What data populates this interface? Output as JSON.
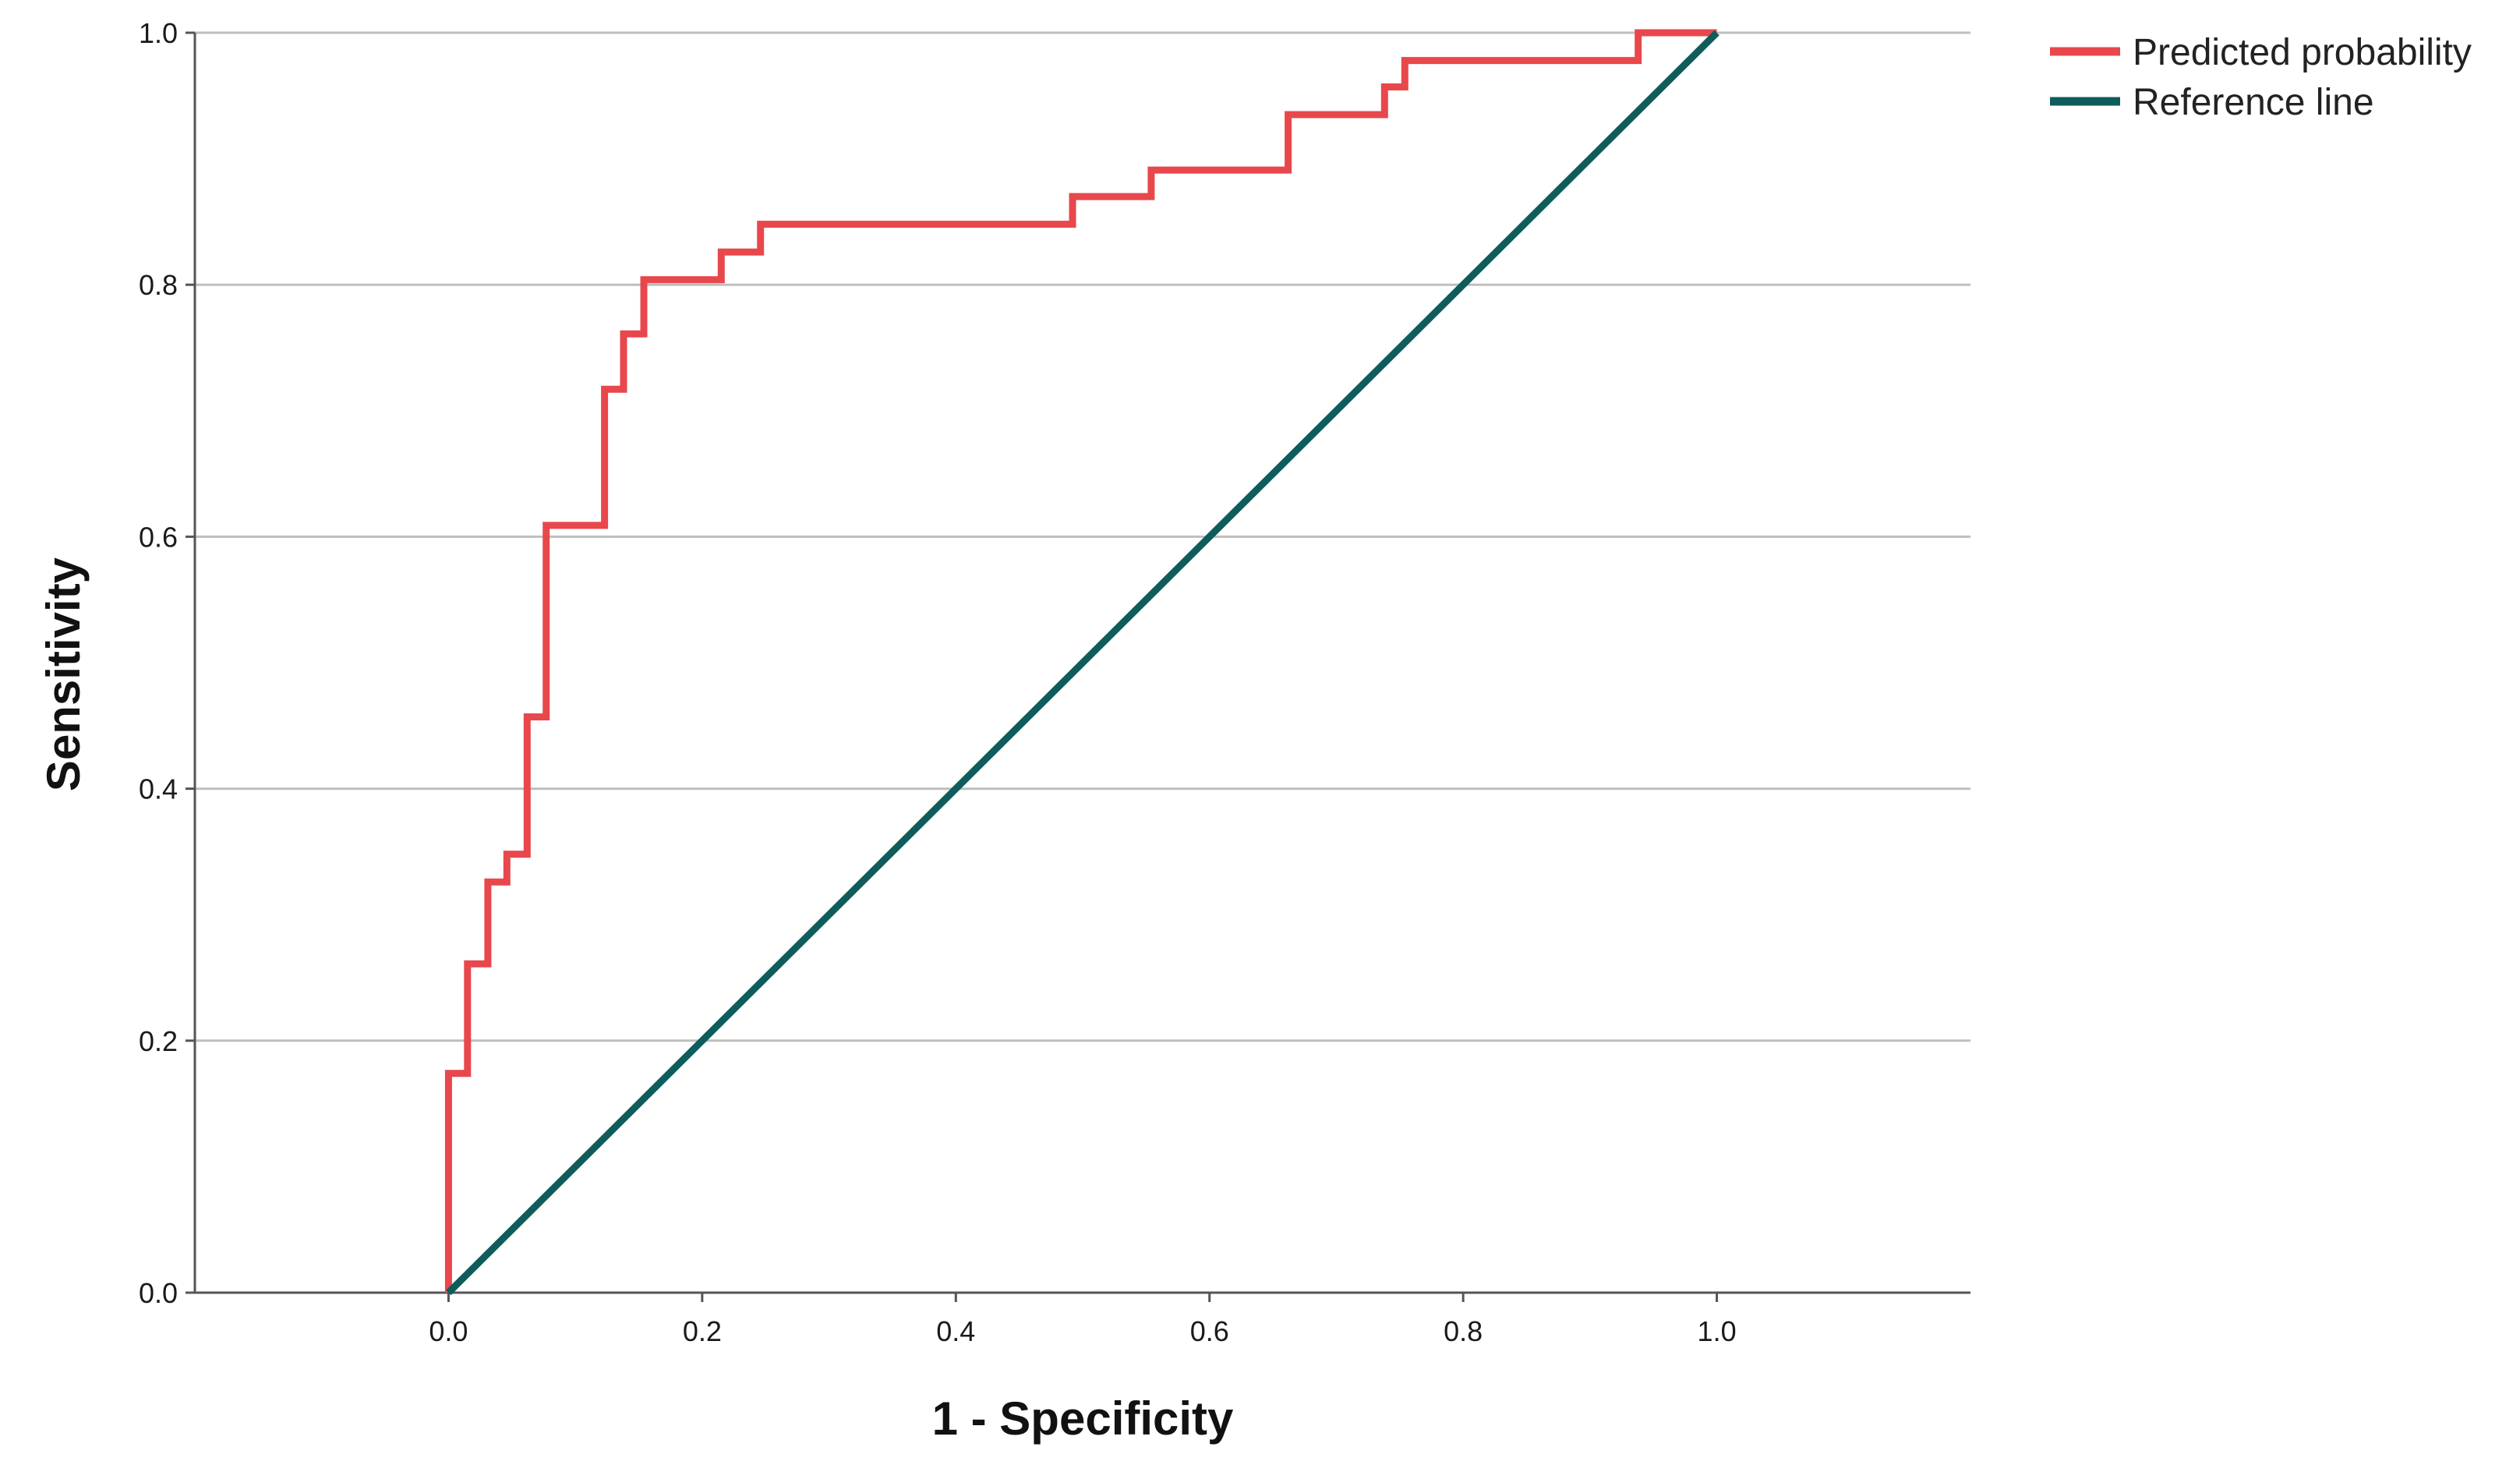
{
  "chart_data": {
    "type": "line",
    "title": "",
    "xlabel": "1 - Specificity",
    "ylabel": "Sensitivity",
    "xlim": [
      -0.2,
      1.2
    ],
    "ylim": [
      0,
      1
    ],
    "x_ticks": [
      0.0,
      0.2,
      0.4,
      0.6,
      0.8,
      1.0
    ],
    "x_tick_labels": [
      "0.0",
      "0.2",
      "0.4",
      "0.6",
      "0.8",
      "1.0"
    ],
    "y_ticks": [
      0.0,
      0.2,
      0.4,
      0.6,
      0.8,
      1.0
    ],
    "y_tick_labels": [
      "0.0",
      "0.2",
      "0.4",
      "0.6",
      "0.8",
      "1.0"
    ],
    "grid": "horizontal",
    "legend_position": "top-right outside",
    "series": [
      {
        "name": "Predicted probability",
        "color": "#e8474c",
        "shape": "step",
        "points": [
          [
            0.0,
            0.0
          ],
          [
            0.0,
            0.174
          ],
          [
            0.015,
            0.174
          ],
          [
            0.015,
            0.261
          ],
          [
            0.031,
            0.261
          ],
          [
            0.031,
            0.326
          ],
          [
            0.046,
            0.326
          ],
          [
            0.046,
            0.348
          ],
          [
            0.062,
            0.348
          ],
          [
            0.062,
            0.457
          ],
          [
            0.077,
            0.457
          ],
          [
            0.077,
            0.609
          ],
          [
            0.123,
            0.609
          ],
          [
            0.123,
            0.717
          ],
          [
            0.138,
            0.717
          ],
          [
            0.138,
            0.761
          ],
          [
            0.154,
            0.761
          ],
          [
            0.154,
            0.804
          ],
          [
            0.215,
            0.804
          ],
          [
            0.215,
            0.826
          ],
          [
            0.246,
            0.826
          ],
          [
            0.246,
            0.848
          ],
          [
            0.492,
            0.848
          ],
          [
            0.492,
            0.87
          ],
          [
            0.554,
            0.87
          ],
          [
            0.554,
            0.891
          ],
          [
            0.662,
            0.891
          ],
          [
            0.662,
            0.935
          ],
          [
            0.738,
            0.935
          ],
          [
            0.738,
            0.957
          ],
          [
            0.754,
            0.957
          ],
          [
            0.754,
            0.978
          ],
          [
            0.938,
            0.978
          ],
          [
            0.938,
            1.0
          ],
          [
            1.0,
            1.0
          ]
        ]
      },
      {
        "name": "Reference line",
        "color": "#0f5c5c",
        "shape": "line",
        "points": [
          [
            0.0,
            0.0
          ],
          [
            1.0,
            1.0
          ]
        ]
      }
    ]
  }
}
